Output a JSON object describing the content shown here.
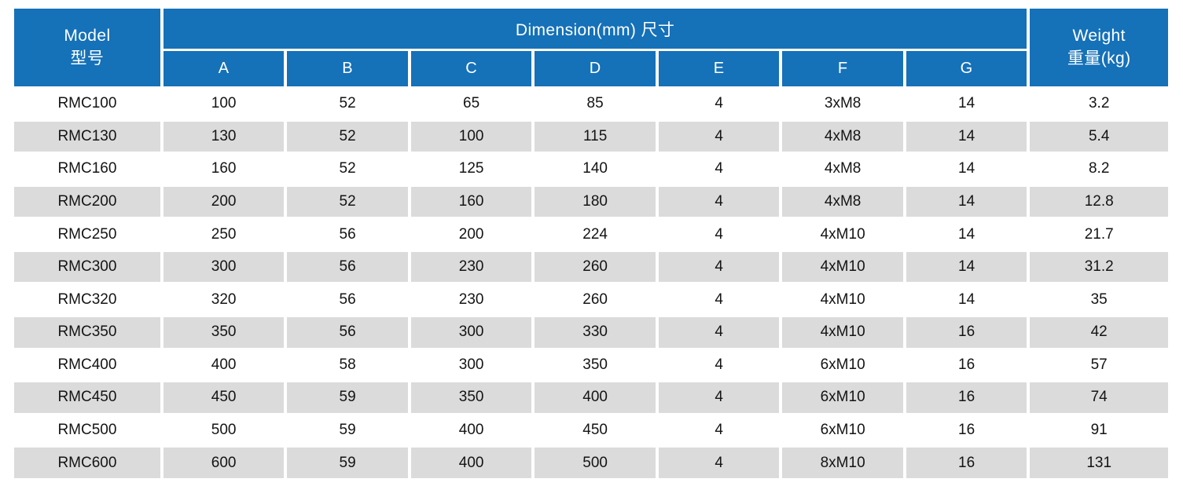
{
  "colors": {
    "header_blue": "#1571b8",
    "alt_row_gray": "#dbdbdb",
    "header_text": "#ffffff",
    "body_text": "#141414"
  },
  "table": {
    "header": {
      "model_line1": "Model",
      "model_line2": "型号",
      "dimension": "Dimension(mm) 尺寸",
      "weight_line1": "Weight",
      "weight_line2": "重量(kg)"
    },
    "columns": [
      "A",
      "B",
      "C",
      "D",
      "E",
      "F",
      "G"
    ],
    "rows": [
      [
        "RMC100",
        "100",
        "52",
        "65",
        "85",
        "4",
        "3xM8",
        "14",
        "3.2"
      ],
      [
        "RMC130",
        "130",
        "52",
        "100",
        "115",
        "4",
        "4xM8",
        "14",
        "5.4"
      ],
      [
        "RMC160",
        "160",
        "52",
        "125",
        "140",
        "4",
        "4xM8",
        "14",
        "8.2"
      ],
      [
        "RMC200",
        "200",
        "52",
        "160",
        "180",
        "4",
        "4xM8",
        "14",
        "12.8"
      ],
      [
        "RMC250",
        "250",
        "56",
        "200",
        "224",
        "4",
        "4xM10",
        "14",
        "21.7"
      ],
      [
        "RMC300",
        "300",
        "56",
        "230",
        "260",
        "4",
        "4xM10",
        "14",
        "31.2"
      ],
      [
        "RMC320",
        "320",
        "56",
        "230",
        "260",
        "4",
        "4xM10",
        "14",
        "35"
      ],
      [
        "RMC350",
        "350",
        "56",
        "300",
        "330",
        "4",
        "4xM10",
        "16",
        "42"
      ],
      [
        "RMC400",
        "400",
        "58",
        "300",
        "350",
        "4",
        "6xM10",
        "16",
        "57"
      ],
      [
        "RMC450",
        "450",
        "59",
        "350",
        "400",
        "4",
        "6xM10",
        "16",
        "74"
      ],
      [
        "RMC500",
        "500",
        "59",
        "400",
        "450",
        "4",
        "6xM10",
        "16",
        "91"
      ],
      [
        "RMC600",
        "600",
        "59",
        "400",
        "500",
        "4",
        "8xM10",
        "16",
        "131"
      ]
    ]
  }
}
